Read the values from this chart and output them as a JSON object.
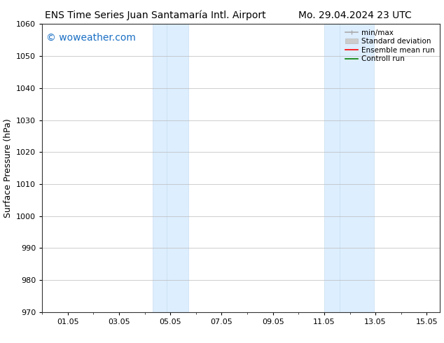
{
  "title_left": "ENS Time Series Juan Santamaría Intl. Airport",
  "title_right": "Mo. 29.04.2024 23 UTC",
  "ylabel": "Surface Pressure (hPa)",
  "ylim": [
    970,
    1060
  ],
  "yticks": [
    970,
    980,
    990,
    1000,
    1010,
    1020,
    1030,
    1040,
    1050,
    1060
  ],
  "xlim": [
    0.0,
    15.5
  ],
  "xtick_labels": [
    "01.05",
    "03.05",
    "05.05",
    "07.05",
    "09.05",
    "11.05",
    "13.05",
    "15.05"
  ],
  "xtick_positions": [
    1,
    3,
    5,
    7,
    9,
    11,
    13,
    15
  ],
  "shaded_bands": [
    {
      "x_start": 4.3,
      "x_end": 4.85
    },
    {
      "x_start": 4.85,
      "x_end": 5.7
    },
    {
      "x_start": 11.0,
      "x_end": 11.6
    },
    {
      "x_start": 11.6,
      "x_end": 12.95
    }
  ],
  "shaded_color": "#ddeeff",
  "shaded_edge_color": "#c8dff0",
  "watermark_text": "© woweather.com",
  "watermark_color": "#1a6fc4",
  "watermark_fontsize": 10,
  "bg_color": "#ffffff",
  "grid_color": "#bbbbbb",
  "title_fontsize": 10,
  "axis_label_fontsize": 9,
  "tick_fontsize": 8,
  "legend_fontsize": 7.5
}
